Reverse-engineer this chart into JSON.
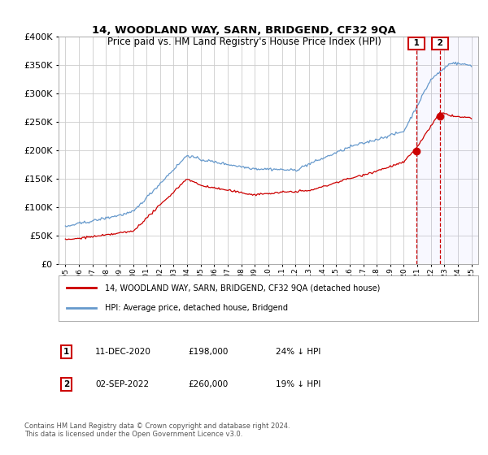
{
  "title": "14, WOODLAND WAY, SARN, BRIDGEND, CF32 9QA",
  "subtitle": "Price paid vs. HM Land Registry's House Price Index (HPI)",
  "footer": "Contains HM Land Registry data © Crown copyright and database right 2024.\nThis data is licensed under the Open Government Licence v3.0.",
  "legend_line1": "14, WOODLAND WAY, SARN, BRIDGEND, CF32 9QA (detached house)",
  "legend_line2": "HPI: Average price, detached house, Bridgend",
  "annotation1_date": "11-DEC-2020",
  "annotation1_price": "£198,000",
  "annotation1_hpi": "24% ↓ HPI",
  "annotation2_date": "02-SEP-2022",
  "annotation2_price": "£260,000",
  "annotation2_hpi": "19% ↓ HPI",
  "ylim": [
    0,
    400000
  ],
  "yticks": [
    0,
    50000,
    100000,
    150000,
    200000,
    250000,
    300000,
    350000,
    400000
  ],
  "red_color": "#cc0000",
  "blue_color": "#6699cc",
  "vline_color": "#cc0000",
  "box_color": "#cc0000",
  "background_color": "#ffffff",
  "grid_color": "#cccccc",
  "sale1_year": 2020.92,
  "sale1_value": 198000,
  "sale2_year": 2022.67,
  "sale2_value": 260000,
  "xlim_left": 1994.5,
  "xlim_right": 2025.5
}
